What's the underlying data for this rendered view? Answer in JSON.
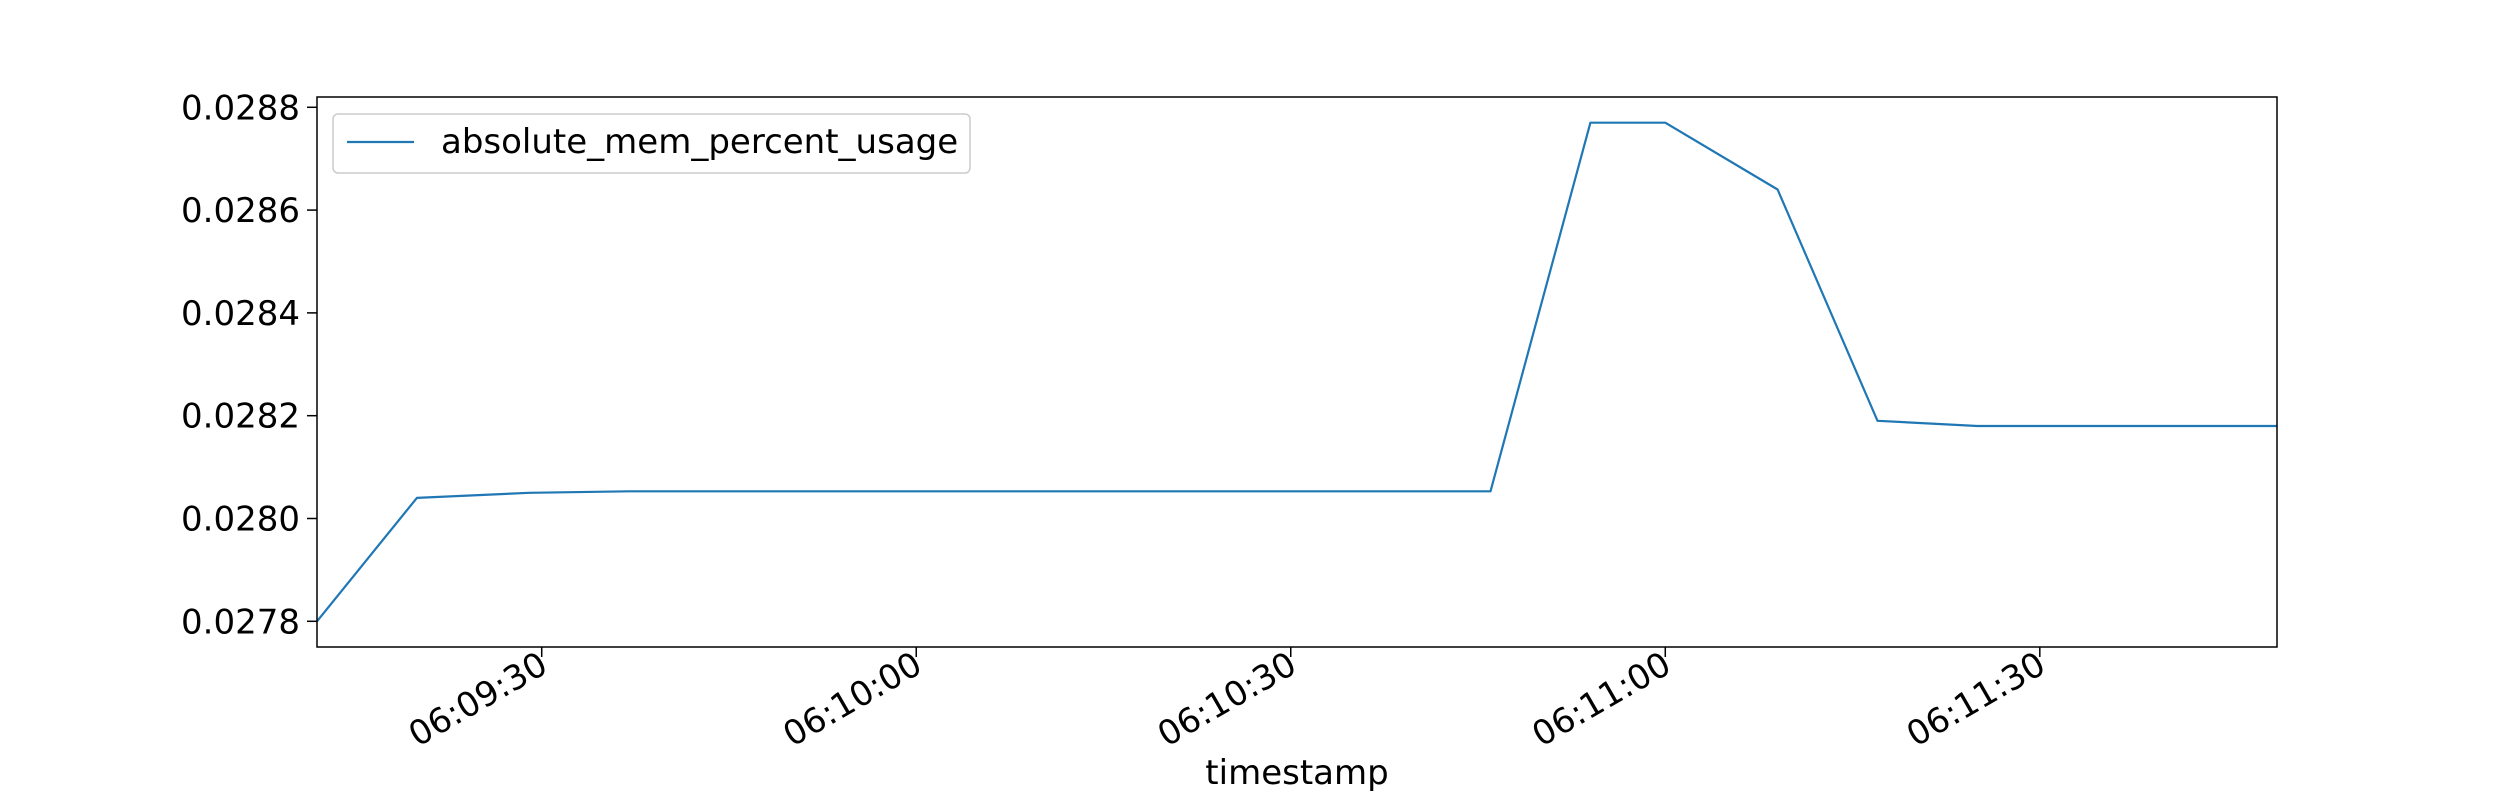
{
  "chart_data": {
    "type": "line",
    "title": "",
    "xlabel": "timestamp",
    "ylabel": "",
    "x_format": "HH:MM:SS",
    "xlim": [
      "06:09:12",
      "06:11:49"
    ],
    "ylim": [
      0.02775,
      0.02882
    ],
    "x_ticks": [
      "06:09:30",
      "06:10:00",
      "06:10:30",
      "06:11:00",
      "06:11:30"
    ],
    "y_ticks": [
      "0.0278",
      "0.0280",
      "0.0282",
      "0.0284",
      "0.0286",
      "0.0288"
    ],
    "grid": false,
    "legend": {
      "placement": "upper-left",
      "entries": [
        "absolute_mem_percent_usage"
      ]
    },
    "series": [
      {
        "name": "absolute_mem_percent_usage",
        "color": "#1f77b4",
        "x": [
          "06:09:12",
          "06:09:20",
          "06:09:29",
          "06:09:37",
          "06:09:46",
          "06:09:54",
          "06:10:03",
          "06:10:12",
          "06:10:20",
          "06:10:29",
          "06:10:37",
          "06:10:46",
          "06:10:54",
          "06:11:00",
          "06:11:09",
          "06:11:17",
          "06:11:25",
          "06:11:34",
          "06:11:42",
          "06:11:49"
        ],
        "y": [
          0.0278,
          0.02804,
          0.02805,
          0.028053,
          0.028053,
          0.028053,
          0.028053,
          0.028053,
          0.028053,
          0.028053,
          0.028053,
          0.028053,
          0.02877,
          0.02877,
          0.02864,
          0.02819,
          0.02818,
          0.02818,
          0.02818,
          0.02818
        ]
      }
    ]
  }
}
